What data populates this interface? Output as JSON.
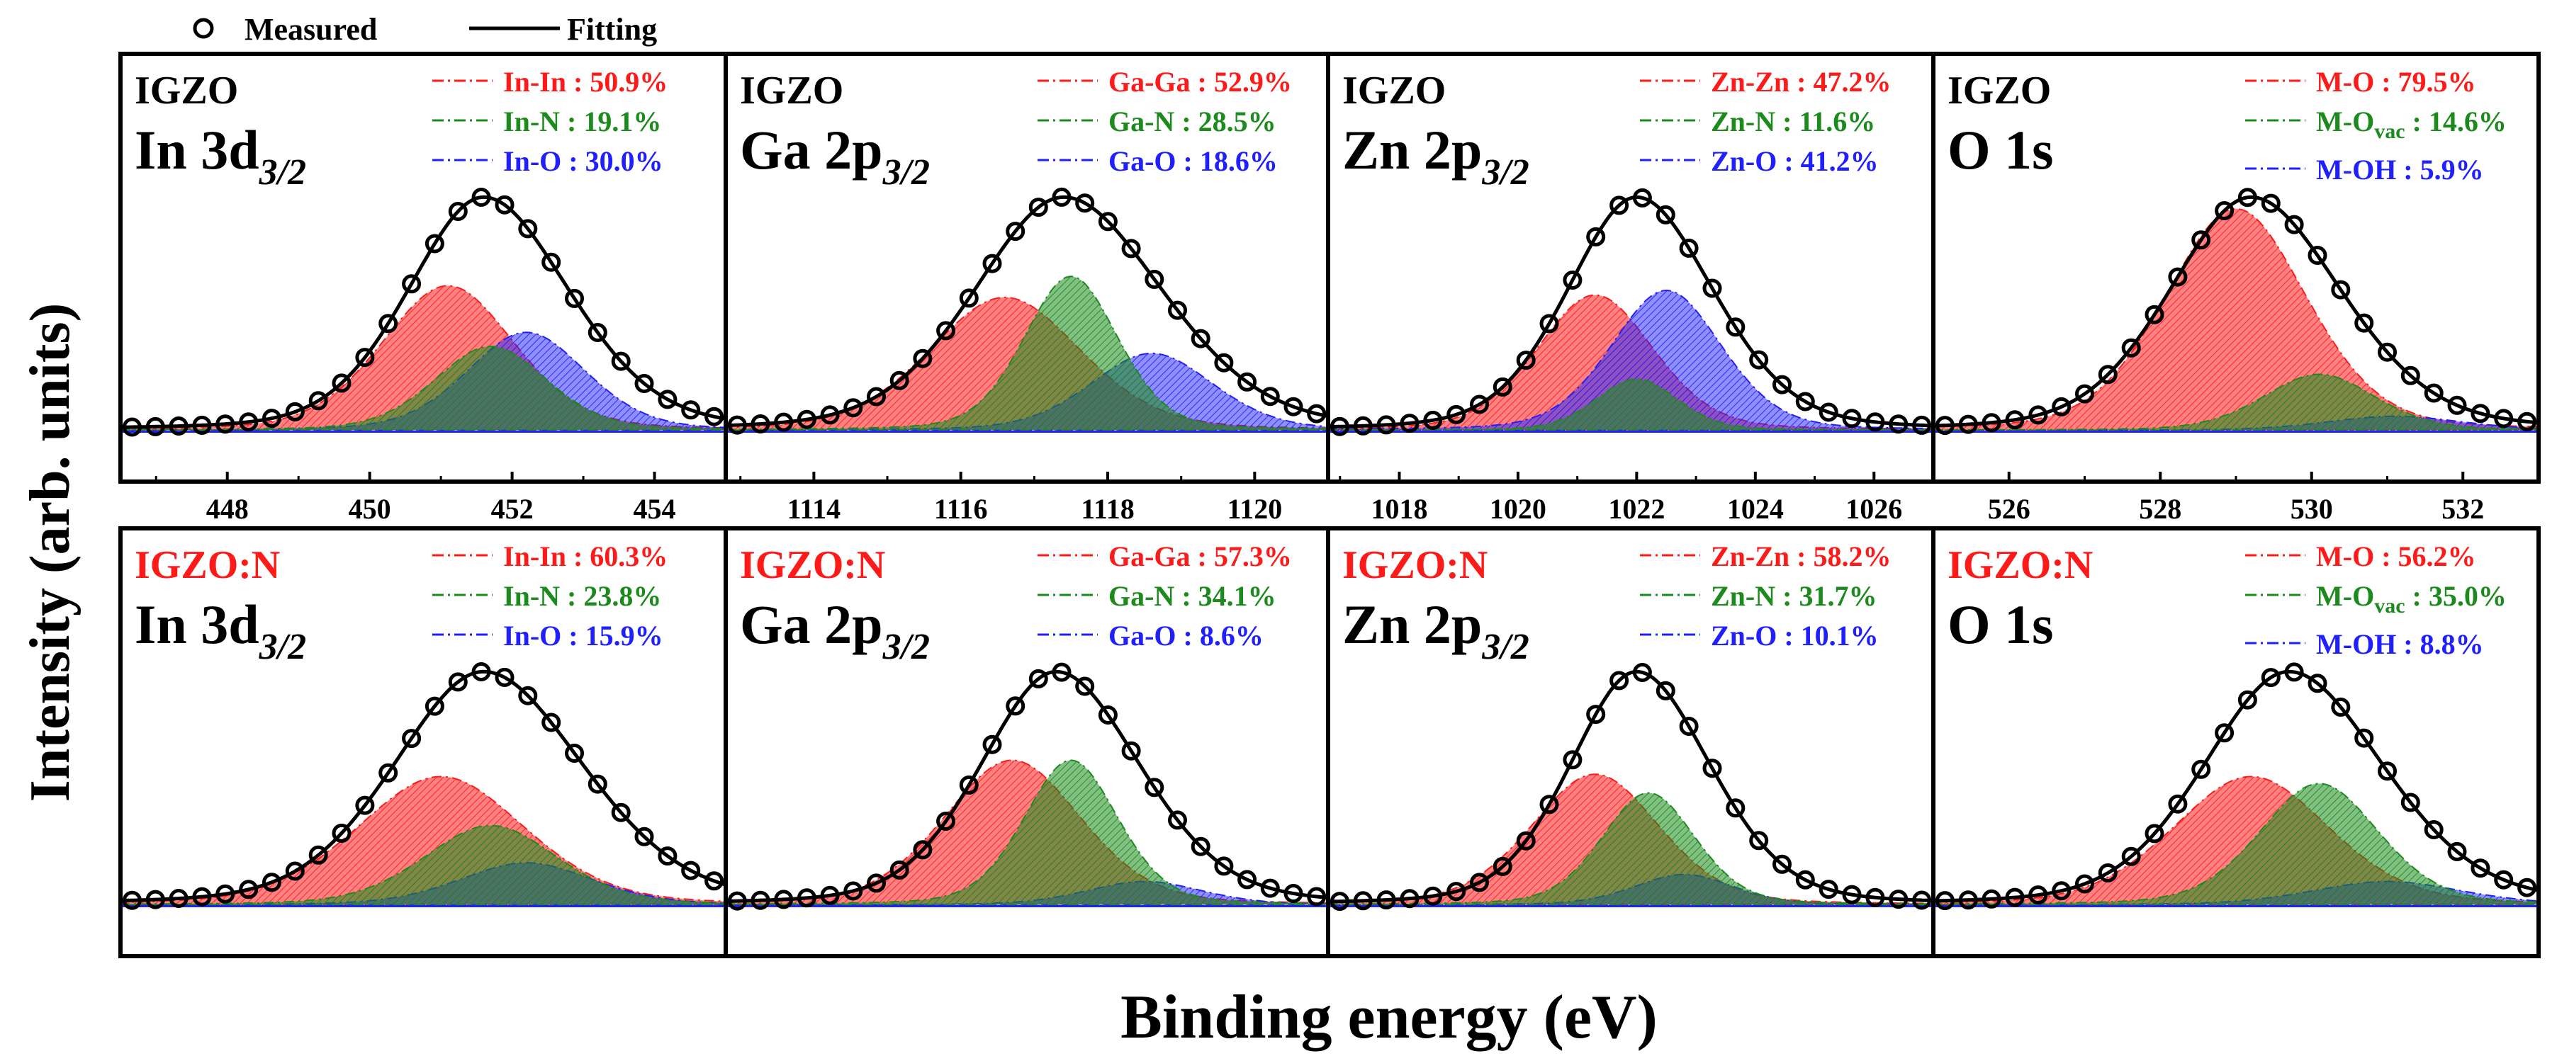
{
  "figure": {
    "ylabel": "Intensity (arb. units)",
    "xlabel": "Binding energy (eV)"
  },
  "legend": {
    "items": [
      {
        "label": "Measured",
        "marker": "open-circle"
      },
      {
        "label": "Fitting",
        "marker": "line"
      }
    ]
  },
  "colors": {
    "red": "#ff1a1a",
    "green": "#1c8a1c",
    "blue": "#1f1fff",
    "black": "#000000"
  },
  "chart_data": [
    {
      "type": "line",
      "row": 0,
      "col": 0,
      "sample": "IGZO",
      "sample_color": "black",
      "core_main": "In 3d",
      "core_sub": "3/2",
      "xlim": [
        446.5,
        455
      ],
      "xticks": [
        "448",
        "450",
        "452",
        "454"
      ],
      "components": [
        {
          "name": "In-In",
          "label": "In-In : 50.9%",
          "color": "red",
          "center": 451.1,
          "width": 0.95,
          "amp": 0.62
        },
        {
          "name": "In-N",
          "label": "In-N : 19.1%",
          "color": "green",
          "center": 451.7,
          "width": 0.8,
          "amp": 0.36
        },
        {
          "name": "In-O",
          "label": "In-O : 30.0%",
          "color": "blue",
          "center": 452.2,
          "width": 0.85,
          "amp": 0.42
        }
      ],
      "measured": {
        "center": 451.6,
        "width": 1.15,
        "amp": 1.0,
        "skew": 0.06
      }
    },
    {
      "type": "line",
      "row": 0,
      "col": 1,
      "sample": "IGZO",
      "sample_color": "black",
      "core_main": "Ga 2p",
      "core_sub": "3/2",
      "xlim": [
        1112.8,
        1121
      ],
      "xticks": [
        "1114",
        "1116",
        "1118",
        "1120"
      ],
      "components": [
        {
          "name": "Ga-Ga",
          "label": "Ga-Ga : 52.9%",
          "color": "red",
          "center": 1116.6,
          "width": 1.05,
          "amp": 0.57
        },
        {
          "name": "Ga-N",
          "label": "Ga-N : 28.5%",
          "color": "green",
          "center": 1117.5,
          "width": 0.65,
          "amp": 0.66
        },
        {
          "name": "Ga-O",
          "label": "Ga-O : 18.6%",
          "color": "blue",
          "center": 1118.6,
          "width": 0.85,
          "amp": 0.33
        }
      ],
      "measured": {
        "center": 1117.4,
        "width": 1.3,
        "amp": 1.0,
        "skew": 0.05
      }
    },
    {
      "type": "line",
      "row": 0,
      "col": 2,
      "sample": "IGZO",
      "sample_color": "black",
      "core_main": "Zn 2p",
      "core_sub": "3/2",
      "xlim": [
        1016.8,
        1027
      ],
      "xticks": [
        "1018",
        "1020",
        "1022",
        "1024",
        "1026"
      ],
      "components": [
        {
          "name": "Zn-Zn",
          "label": "Zn-Zn : 47.2%",
          "color": "red",
          "center": 1021.3,
          "width": 1.0,
          "amp": 0.58
        },
        {
          "name": "Zn-N",
          "label": "Zn-N : 11.6%",
          "color": "green",
          "center": 1022.0,
          "width": 0.7,
          "amp": 0.22
        },
        {
          "name": "Zn-O",
          "label": "Zn-O : 41.2%",
          "color": "blue",
          "center": 1022.5,
          "width": 0.95,
          "amp": 0.6
        }
      ],
      "measured": {
        "center": 1022.0,
        "width": 1.25,
        "amp": 1.0,
        "skew": 0.05
      }
    },
    {
      "type": "line",
      "row": 0,
      "col": 3,
      "sample": "IGZO",
      "sample_color": "black",
      "core_main": "O 1s",
      "core_sub": "",
      "xlim": [
        525,
        533
      ],
      "xticks": [
        "526",
        "528",
        "530",
        "532"
      ],
      "components": [
        {
          "name": "M-O",
          "label": "M-O : 79.5%",
          "color": "red",
          "center": 529.0,
          "width": 0.95,
          "amp": 0.95
        },
        {
          "name": "M-Ovac",
          "label": "M-O",
          "label_sub": "vac",
          "label_tail": " : 14.6%",
          "color": "green",
          "center": 530.1,
          "width": 0.75,
          "amp": 0.24
        },
        {
          "name": "M-OH",
          "label": "M-OH : 5.9%",
          "color": "blue",
          "center": 531.1,
          "width": 0.9,
          "amp": 0.06
        }
      ],
      "measured": {
        "center": 529.2,
        "width": 1.15,
        "amp": 1.0,
        "skew": 0.05
      }
    },
    {
      "type": "line",
      "row": 1,
      "col": 0,
      "sample": "IGZO:N",
      "sample_color": "red",
      "core_main": "In 3d",
      "core_sub": "3/2",
      "xlim": [
        446.5,
        455
      ],
      "xticks": [],
      "components": [
        {
          "name": "In-In",
          "label": "In-In : 60.3%",
          "color": "red",
          "center": 451.0,
          "width": 1.2,
          "amp": 0.55
        },
        {
          "name": "In-N",
          "label": "In-N : 23.8%",
          "color": "green",
          "center": 451.7,
          "width": 0.95,
          "amp": 0.34
        },
        {
          "name": "In-O",
          "label": "In-O : 15.9%",
          "color": "blue",
          "center": 452.2,
          "width": 0.95,
          "amp": 0.18
        }
      ],
      "measured": {
        "center": 451.6,
        "width": 1.35,
        "amp": 1.0,
        "skew": 0.05
      }
    },
    {
      "type": "line",
      "row": 1,
      "col": 1,
      "sample": "IGZO:N",
      "sample_color": "red",
      "core_main": "Ga 2p",
      "core_sub": "3/2",
      "xlim": [
        1112.8,
        1121
      ],
      "xticks": [],
      "components": [
        {
          "name": "Ga-Ga",
          "label": "Ga-Ga : 57.3%",
          "color": "red",
          "center": 1116.7,
          "width": 0.95,
          "amp": 0.62
        },
        {
          "name": "Ga-N",
          "label": "Ga-N : 34.1%",
          "color": "green",
          "center": 1117.5,
          "width": 0.65,
          "amp": 0.62
        },
        {
          "name": "Ga-O",
          "label": "Ga-O : 8.6%",
          "color": "blue",
          "center": 1118.5,
          "width": 0.8,
          "amp": 0.1
        }
      ],
      "measured": {
        "center": 1117.3,
        "width": 1.1,
        "amp": 1.0,
        "skew": 0.05
      }
    },
    {
      "type": "line",
      "row": 1,
      "col": 2,
      "sample": "IGZO:N",
      "sample_color": "red",
      "core_main": "Zn 2p",
      "core_sub": "3/2",
      "xlim": [
        1016.8,
        1027
      ],
      "xticks": [],
      "components": [
        {
          "name": "Zn-Zn",
          "label": "Zn-Zn : 58.2%",
          "color": "red",
          "center": 1021.3,
          "width": 1.1,
          "amp": 0.56
        },
        {
          "name": "Zn-N",
          "label": "Zn-N : 31.7%",
          "color": "green",
          "center": 1022.2,
          "width": 0.8,
          "amp": 0.48
        },
        {
          "name": "Zn-O",
          "label": "Zn-O : 10.1%",
          "color": "blue",
          "center": 1022.8,
          "width": 0.85,
          "amp": 0.13
        }
      ],
      "measured": {
        "center": 1022.0,
        "width": 1.2,
        "amp": 1.0,
        "skew": 0.05
      }
    },
    {
      "type": "line",
      "row": 1,
      "col": 3,
      "sample": "IGZO:N",
      "sample_color": "red",
      "core_main": "O 1s",
      "core_sub": "",
      "xlim": [
        525,
        533
      ],
      "xticks": [],
      "components": [
        {
          "name": "M-O",
          "label": "M-O : 56.2%",
          "color": "red",
          "center": 529.2,
          "width": 1.05,
          "amp": 0.55
        },
        {
          "name": "M-Ovac",
          "label": "M-O",
          "label_sub": "vac",
          "label_tail": " : 35.0%",
          "color": "green",
          "center": 530.1,
          "width": 0.8,
          "amp": 0.52
        },
        {
          "name": "M-OH",
          "label": "M-OH : 8.8%",
          "color": "blue",
          "center": 531.0,
          "width": 1.0,
          "amp": 0.1
        }
      ],
      "measured": {
        "center": 529.7,
        "width": 1.2,
        "amp": 1.0,
        "skew": 0.05
      }
    }
  ]
}
